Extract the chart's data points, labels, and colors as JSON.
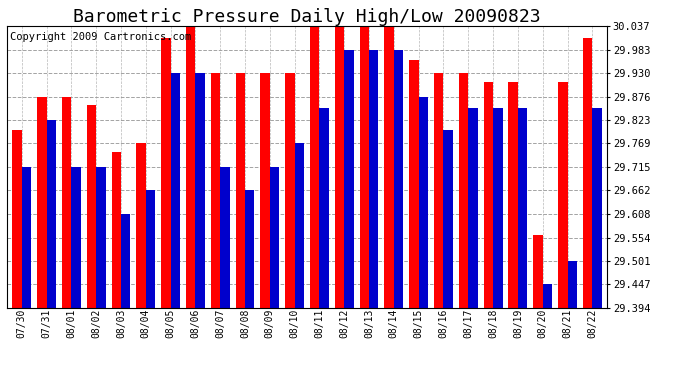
{
  "title": "Barometric Pressure Daily High/Low 20090823",
  "copyright": "Copyright 2009 Cartronics.com",
  "dates": [
    "07/30",
    "07/31",
    "08/01",
    "08/02",
    "08/03",
    "08/04",
    "08/05",
    "08/06",
    "08/07",
    "08/08",
    "08/09",
    "08/10",
    "08/11",
    "08/12",
    "08/13",
    "08/14",
    "08/15",
    "08/16",
    "08/17",
    "08/18",
    "08/19",
    "08/20",
    "08/21",
    "08/22"
  ],
  "highs": [
    29.8,
    29.876,
    29.876,
    29.856,
    29.75,
    29.769,
    30.01,
    30.037,
    29.93,
    29.93,
    29.93,
    29.93,
    30.037,
    30.037,
    30.037,
    30.037,
    29.96,
    29.93,
    29.93,
    29.91,
    29.91,
    29.56,
    29.91,
    30.01
  ],
  "lows": [
    29.715,
    29.823,
    29.715,
    29.715,
    29.608,
    29.662,
    29.93,
    29.93,
    29.715,
    29.662,
    29.715,
    29.769,
    29.85,
    29.983,
    29.983,
    29.983,
    29.876,
    29.8,
    29.85,
    29.85,
    29.85,
    29.447,
    29.501,
    29.85
  ],
  "high_color": "#ff0000",
  "low_color": "#0000cc",
  "background_color": "#ffffff",
  "grid_color": "#999999",
  "ymin": 29.394,
  "ymax": 30.037,
  "yticks": [
    29.394,
    29.447,
    29.501,
    29.554,
    29.608,
    29.662,
    29.715,
    29.769,
    29.823,
    29.876,
    29.93,
    29.983,
    30.037
  ],
  "title_fontsize": 13,
  "copyright_fontsize": 7.5,
  "bar_width": 0.38
}
